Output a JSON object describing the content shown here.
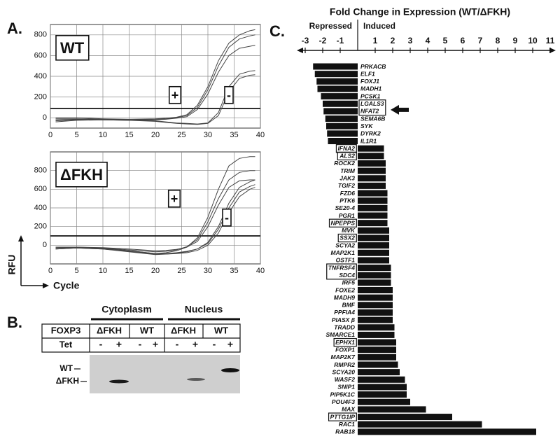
{
  "panel_labels": [
    "A.",
    "B.",
    "C."
  ],
  "chart_data": [
    {
      "type": "line",
      "title": "WT",
      "annotations": [
        "+",
        "-"
      ],
      "x": [
        1,
        5,
        10,
        15,
        20,
        22,
        24,
        26,
        28,
        30,
        32,
        34,
        36,
        38,
        39
      ],
      "series": [
        {
          "color": "#444",
          "values": [
            0,
            0,
            -10,
            -15,
            -10,
            -5,
            5,
            30,
            120,
            300,
            550,
            720,
            800,
            840,
            850
          ]
        },
        {
          "color": "#444",
          "values": [
            -10,
            -10,
            -15,
            -20,
            -15,
            -10,
            0,
            20,
            100,
            270,
            500,
            680,
            760,
            790,
            800
          ]
        },
        {
          "color": "#444",
          "values": [
            -20,
            -15,
            -20,
            -25,
            -20,
            -15,
            -5,
            10,
            80,
            230,
            440,
            600,
            670,
            690,
            700
          ]
        },
        {
          "color": "#444",
          "values": [
            -30,
            -20,
            -15,
            -20,
            -30,
            -40,
            -50,
            -55,
            -60,
            -50,
            50,
            300,
            420,
            450,
            455
          ]
        },
        {
          "color": "#444",
          "values": [
            -40,
            -25,
            -20,
            -25,
            -35,
            -45,
            -55,
            -60,
            -65,
            -55,
            20,
            250,
            380,
            410,
            415
          ]
        }
      ],
      "threshold": 90,
      "xlim": [
        0,
        40
      ],
      "xticks": [
        0,
        5,
        10,
        15,
        20,
        25,
        30,
        35,
        40
      ],
      "ylim": [
        -100,
        900
      ],
      "yticks": [
        0,
        200,
        400,
        600,
        800
      ],
      "grid": true
    },
    {
      "type": "line",
      "title": "ΔFKH",
      "annotations": [
        "+",
        "-"
      ],
      "x_label": "Cycle",
      "y_label": "RFU",
      "x": [
        1,
        5,
        10,
        15,
        20,
        22,
        24,
        26,
        28,
        30,
        32,
        34,
        36,
        38,
        39
      ],
      "series": [
        {
          "color": "#444",
          "values": [
            -40,
            -30,
            -30,
            -60,
            -90,
            -80,
            -60,
            -20,
            80,
            300,
            600,
            850,
            930,
            950,
            950
          ]
        },
        {
          "color": "#444",
          "values": [
            -30,
            -20,
            -30,
            -50,
            -70,
            -65,
            -50,
            -15,
            60,
            250,
            500,
            700,
            780,
            800,
            800
          ]
        },
        {
          "color": "#444",
          "values": [
            -20,
            -20,
            -25,
            -40,
            -60,
            -55,
            -45,
            -20,
            40,
            200,
            430,
            620,
            690,
            700,
            700
          ]
        },
        {
          "color": "#444",
          "values": [
            -30,
            -30,
            -40,
            -70,
            -100,
            -95,
            -85,
            -70,
            -40,
            30,
            200,
            450,
            620,
            680,
            700
          ]
        },
        {
          "color": "#444",
          "values": [
            -20,
            -25,
            -35,
            -60,
            -90,
            -90,
            -80,
            -65,
            -40,
            20,
            170,
            400,
            570,
            630,
            650
          ]
        },
        {
          "color": "#444",
          "values": [
            -40,
            -30,
            -40,
            -65,
            -95,
            -95,
            -90,
            -80,
            -55,
            0,
            130,
            350,
            520,
            600,
            620
          ]
        }
      ],
      "threshold": 100,
      "xlim": [
        0,
        40
      ],
      "xticks": [
        0,
        5,
        10,
        15,
        20,
        25,
        30,
        35,
        40
      ],
      "ylim": [
        -200,
        1000
      ],
      "yticks": [
        0,
        200,
        400,
        600,
        800
      ],
      "grid": true
    },
    {
      "type": "bar",
      "orientation": "horizontal",
      "title": "Fold Change in Expression (WT/ΔFKH)",
      "annotations": [
        "Repressed",
        "Induced"
      ],
      "color": "#111",
      "categories": [
        "PRKACB",
        "ELF1",
        "FOXJ1",
        "MADH1",
        "PCSK1",
        "LGALS3",
        "NFAT2",
        "SEMA6B",
        "SYK",
        "DYRK2",
        "IL1R1",
        "IFNA2",
        "ALS2",
        "ROCK2",
        "TRIM",
        "JAK3",
        "TGIF2",
        "FZD6",
        "PTK6",
        "SE20-4",
        "PGR1",
        "NPEPPS",
        "MVK",
        "SSX2",
        "SCYA2",
        "MAP2K1",
        "OSTF1",
        "TNFRSF4",
        "SDC4",
        "IRF5",
        "FOXE2",
        "MADH9",
        "BMF",
        "PPFIA4",
        "PIASX β",
        "TRADD",
        "SMARCE1",
        "EPHX1",
        "FOXP1",
        "MAP2K7",
        "RMPR2",
        "SCYA20",
        "WASF2",
        "SNIP1",
        "PIP5K1C",
        "POU4F3",
        "MAX",
        "PTTG1IP",
        "RAC1",
        "RAB18"
      ],
      "values": [
        -2.55,
        -2.45,
        -2.35,
        -2.3,
        -2.1,
        -2.0,
        -1.95,
        -1.85,
        -1.8,
        -1.75,
        -1.7,
        1.5,
        1.5,
        1.6,
        1.6,
        1.6,
        1.6,
        1.7,
        1.7,
        1.7,
        1.7,
        1.7,
        1.8,
        1.8,
        1.8,
        1.8,
        1.8,
        1.9,
        1.9,
        1.9,
        2.0,
        2.0,
        2.0,
        2.0,
        2.0,
        2.1,
        2.1,
        2.2,
        2.2,
        2.2,
        2.3,
        2.4,
        2.7,
        2.8,
        2.8,
        3.0,
        3.9,
        5.4,
        7.1,
        10.2
      ],
      "xlim": [
        -3,
        11
      ],
      "xticks": [
        -3,
        -2,
        -1,
        1,
        2,
        3,
        4,
        5,
        6,
        7,
        8,
        9,
        10,
        11
      ]
    }
  ],
  "blot": {
    "compartments": [
      "Cytoplasm",
      "Nucleus"
    ],
    "row_labels": [
      "FOXP3",
      "Tet"
    ],
    "foxp3": [
      "ΔFKH",
      "WT",
      "ΔFKH",
      "WT"
    ],
    "tet": [
      "-",
      "+",
      "-",
      "+",
      "-",
      "+",
      "-",
      "+"
    ],
    "band_labels": [
      "WT",
      "ΔFKH"
    ]
  }
}
